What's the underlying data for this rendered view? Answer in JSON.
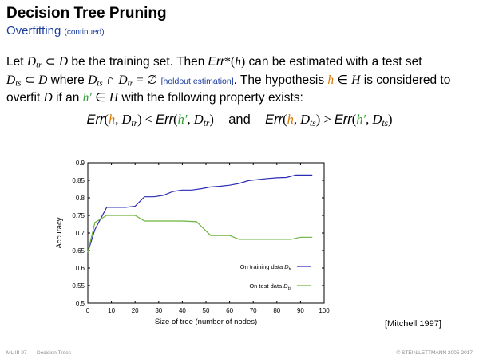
{
  "slide": {
    "title": "Decision Tree Pruning",
    "subtitle": "Overfitting",
    "subtitle_note": "(continued)",
    "holdout_link": "[holdout estimation]",
    "citation": "[Mitchell 1997]",
    "footer_left": "ML:III-97",
    "footer_section": "Decision Trees",
    "footer_right": "© STEIN/LETTMANN 2005-2017"
  },
  "colors": {
    "hypothesis_h": "#d97a00",
    "hypothesis_h_prime": "#2e9e2e",
    "training_line": "#2b2bb5",
    "test_line": "#6db33f",
    "subtitle": "#1a3d9e"
  },
  "chart_data": {
    "type": "line",
    "title": "",
    "xlabel": "Size of tree (number of nodes)",
    "ylabel": "Accuracy",
    "xlim": [
      0,
      100
    ],
    "ylim": [
      0.5,
      0.9
    ],
    "xticks": [
      "0",
      "10",
      "20",
      "30",
      "40",
      "50",
      "60",
      "70",
      "80",
      "90",
      "100"
    ],
    "yticks": [
      "0.5",
      "0.55",
      "0.6",
      "0.65",
      "0.7",
      "0.75",
      "0.8",
      "0.85",
      "0.9"
    ],
    "grid": false,
    "legend_position": "bottom-right",
    "series": [
      {
        "name": "On training data D_tr",
        "legend_text": "On training data",
        "legend_sub": "tr",
        "color": "#2b2bb5",
        "points": [
          [
            0,
            0.645
          ],
          [
            3,
            0.71
          ],
          [
            8,
            0.773
          ],
          [
            12,
            0.773
          ],
          [
            16,
            0.773
          ],
          [
            20,
            0.776
          ],
          [
            24,
            0.803
          ],
          [
            28,
            0.803
          ],
          [
            32,
            0.807
          ],
          [
            36,
            0.818
          ],
          [
            40,
            0.822
          ],
          [
            44,
            0.822
          ],
          [
            48,
            0.826
          ],
          [
            52,
            0.831
          ],
          [
            56,
            0.833
          ],
          [
            60,
            0.836
          ],
          [
            64,
            0.841
          ],
          [
            68,
            0.849
          ],
          [
            72,
            0.852
          ],
          [
            76,
            0.855
          ],
          [
            80,
            0.857
          ],
          [
            84,
            0.858
          ],
          [
            88,
            0.865
          ],
          [
            95,
            0.865
          ]
        ]
      },
      {
        "name": "On test data D_ts",
        "legend_text": "On test data",
        "legend_sub": "ts",
        "color": "#6db33f",
        "points": [
          [
            0,
            0.645
          ],
          [
            3,
            0.73
          ],
          [
            8,
            0.75
          ],
          [
            14,
            0.75
          ],
          [
            20,
            0.75
          ],
          [
            24,
            0.734
          ],
          [
            30,
            0.734
          ],
          [
            36,
            0.734
          ],
          [
            40,
            0.734
          ],
          [
            46,
            0.732
          ],
          [
            52,
            0.693
          ],
          [
            56,
            0.693
          ],
          [
            60,
            0.693
          ],
          [
            64,
            0.682
          ],
          [
            70,
            0.682
          ],
          [
            76,
            0.682
          ],
          [
            82,
            0.682
          ],
          [
            86,
            0.682
          ],
          [
            90,
            0.688
          ],
          [
            95,
            0.688
          ]
        ]
      }
    ]
  }
}
